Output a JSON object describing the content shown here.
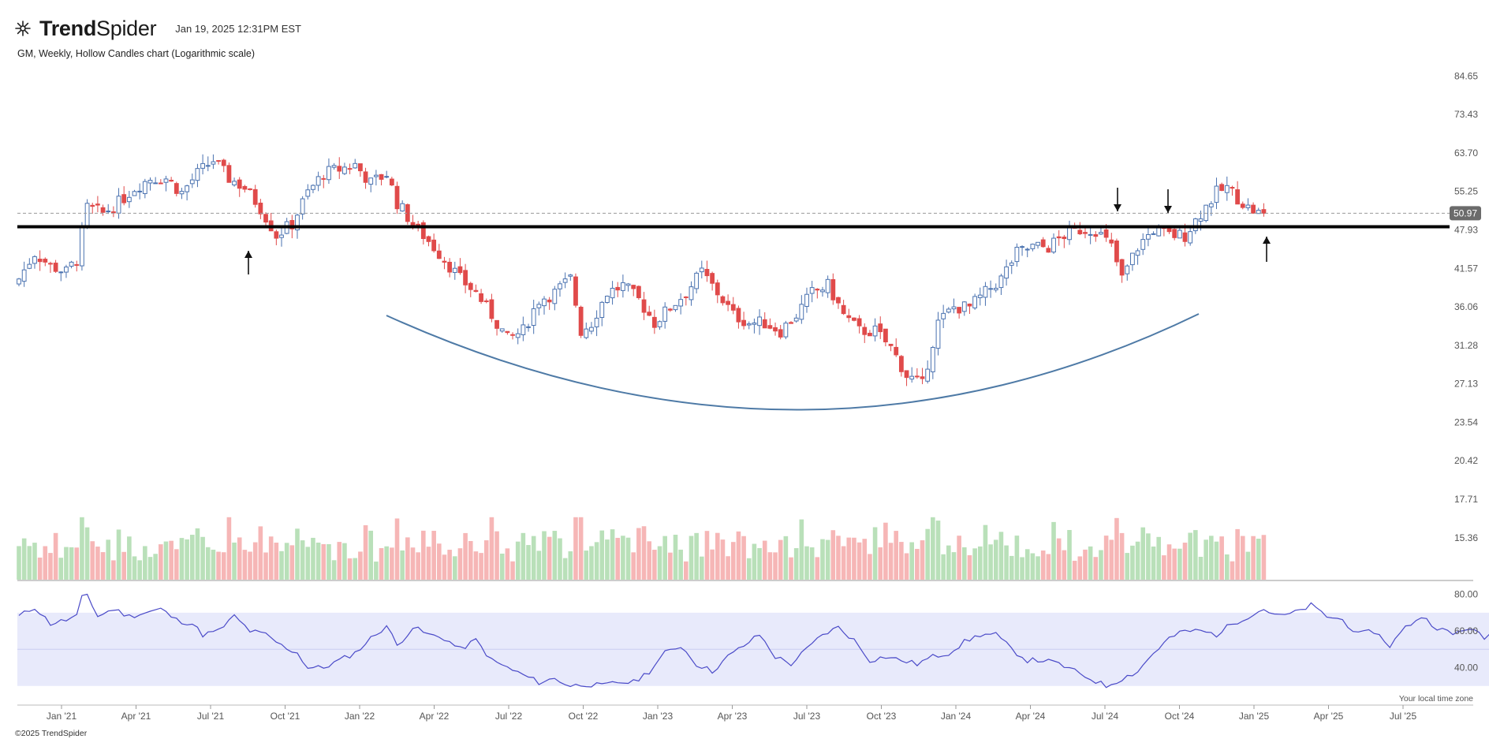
{
  "header": {
    "brand_bold": "Trend",
    "brand_light": "Spider",
    "timestamp": "Jan 19, 2025 12:31PM EST",
    "subtitle": "GM, Weekly, Hollow Candles chart (Logarithmic scale)",
    "logo_icon": "trendspider-logo-icon"
  },
  "footer": {
    "copyright": "©2025 TrendSpider",
    "timezone_note": "Your local time zone"
  },
  "chart_data": {
    "type": "candlestick",
    "symbol": "GM",
    "interval": "Weekly",
    "scale": "log",
    "ylim": [
      19.5,
      87
    ],
    "price_ticks": [
      "84.65",
      "73.43",
      "63.70",
      "55.25",
      "47.93",
      "41.57",
      "36.06",
      "31.28",
      "27.13",
      "23.54",
      "20.42",
      "17.71",
      "15.36"
    ],
    "x_ticks": [
      "Jan '21",
      "Apr '21",
      "Jul '21",
      "Oct '21",
      "Jan '22",
      "Apr '22",
      "Jul '22",
      "Oct '22",
      "Jan '23",
      "Apr '23",
      "Jul '23",
      "Oct '23",
      "Jan '24",
      "Apr '24",
      "Jul '24",
      "Oct '24",
      "Jan '25",
      "Apr '25",
      "Jul '25"
    ],
    "last_price": 50.97,
    "support_line": 48.5,
    "colors": {
      "up": "#4a72b0",
      "down": "#e04a4a",
      "vol_up": "#b9e0b9",
      "vol_down": "#f6b6b6",
      "rsi_line": "#4a4ac8",
      "rsi_band": "#e8eafb",
      "arc": "#4e7aa6"
    },
    "close_anchors": [
      {
        "w": 0,
        "c": 40
      },
      {
        "w": 3,
        "c": 44
      },
      {
        "w": 6,
        "c": 42
      },
      {
        "w": 9,
        "c": 41
      },
      {
        "w": 11,
        "c": 43
      },
      {
        "w": 13,
        "c": 52
      },
      {
        "w": 16,
        "c": 51
      },
      {
        "w": 19,
        "c": 53
      },
      {
        "w": 22,
        "c": 56
      },
      {
        "w": 25,
        "c": 58
      },
      {
        "w": 28,
        "c": 58
      },
      {
        "w": 31,
        "c": 55
      },
      {
        "w": 34,
        "c": 59
      },
      {
        "w": 37,
        "c": 62
      },
      {
        "w": 40,
        "c": 58
      },
      {
        "w": 43,
        "c": 56
      },
      {
        "w": 46,
        "c": 52
      },
      {
        "w": 49,
        "c": 47
      },
      {
        "w": 52,
        "c": 49
      },
      {
        "w": 55,
        "c": 55
      },
      {
        "w": 58,
        "c": 59
      },
      {
        "w": 61,
        "c": 60
      },
      {
        "w": 64,
        "c": 61
      },
      {
        "w": 67,
        "c": 57
      },
      {
        "w": 70,
        "c": 59
      },
      {
        "w": 72,
        "c": 53
      },
      {
        "w": 75,
        "c": 49
      },
      {
        "w": 78,
        "c": 46
      },
      {
        "w": 81,
        "c": 43
      },
      {
        "w": 84,
        "c": 40
      },
      {
        "w": 87,
        "c": 38
      },
      {
        "w": 90,
        "c": 35
      },
      {
        "w": 93,
        "c": 32
      },
      {
        "w": 96,
        "c": 33
      },
      {
        "w": 99,
        "c": 37
      },
      {
        "w": 102,
        "c": 38
      },
      {
        "w": 105,
        "c": 40
      },
      {
        "w": 107,
        "c": 33
      },
      {
        "w": 109,
        "c": 34
      },
      {
        "w": 112,
        "c": 38
      },
      {
        "w": 115,
        "c": 39
      },
      {
        "w": 118,
        "c": 37
      },
      {
        "w": 121,
        "c": 34
      },
      {
        "w": 124,
        "c": 36
      },
      {
        "w": 127,
        "c": 38
      },
      {
        "w": 130,
        "c": 41
      },
      {
        "w": 133,
        "c": 38
      },
      {
        "w": 136,
        "c": 35
      },
      {
        "w": 139,
        "c": 34
      },
      {
        "w": 142,
        "c": 34
      },
      {
        "w": 145,
        "c": 33
      },
      {
        "w": 148,
        "c": 35
      },
      {
        "w": 151,
        "c": 38
      },
      {
        "w": 154,
        "c": 39
      },
      {
        "w": 157,
        "c": 35
      },
      {
        "w": 160,
        "c": 33
      },
      {
        "w": 163,
        "c": 33
      },
      {
        "w": 166,
        "c": 31
      },
      {
        "w": 169,
        "c": 28
      },
      {
        "w": 172,
        "c": 27
      },
      {
        "w": 175,
        "c": 34
      },
      {
        "w": 178,
        "c": 36
      },
      {
        "w": 181,
        "c": 36
      },
      {
        "w": 184,
        "c": 38
      },
      {
        "w": 187,
        "c": 40
      },
      {
        "w": 190,
        "c": 44
      },
      {
        "w": 193,
        "c": 45
      },
      {
        "w": 196,
        "c": 45
      },
      {
        "w": 199,
        "c": 47
      },
      {
        "w": 202,
        "c": 48
      },
      {
        "w": 205,
        "c": 48
      },
      {
        "w": 208,
        "c": 45
      },
      {
        "w": 210,
        "c": 40
      },
      {
        "w": 213,
        "c": 45
      },
      {
        "w": 216,
        "c": 48
      },
      {
        "w": 219,
        "c": 47
      },
      {
        "w": 222,
        "c": 47
      },
      {
        "w": 225,
        "c": 51
      },
      {
        "w": 228,
        "c": 55
      },
      {
        "w": 230,
        "c": 56
      },
      {
        "w": 232,
        "c": 54
      },
      {
        "w": 234,
        "c": 52
      },
      {
        "w": 236,
        "c": 51
      },
      {
        "w": 237,
        "c": 50.97
      }
    ],
    "rsi": {
      "ylim": [
        20,
        85
      ],
      "ticks": [
        "80.00",
        "60.00",
        "40.00"
      ],
      "band": [
        30,
        70
      ],
      "anchors": [
        {
          "w": 0,
          "v": 68
        },
        {
          "w": 3,
          "v": 73
        },
        {
          "w": 6,
          "v": 64
        },
        {
          "w": 9,
          "v": 66
        },
        {
          "w": 11,
          "v": 68
        },
        {
          "w": 12,
          "v": 78
        },
        {
          "w": 13,
          "v": 80
        },
        {
          "w": 15,
          "v": 68
        },
        {
          "w": 18,
          "v": 72
        },
        {
          "w": 21,
          "v": 68
        },
        {
          "w": 24,
          "v": 70
        },
        {
          "w": 27,
          "v": 72
        },
        {
          "w": 30,
          "v": 66
        },
        {
          "w": 33,
          "v": 64
        },
        {
          "w": 35,
          "v": 58
        },
        {
          "w": 38,
          "v": 60
        },
        {
          "w": 41,
          "v": 68
        },
        {
          "w": 44,
          "v": 60
        },
        {
          "w": 47,
          "v": 58
        },
        {
          "w": 50,
          "v": 52
        },
        {
          "w": 53,
          "v": 48
        },
        {
          "w": 55,
          "v": 40
        },
        {
          "w": 58,
          "v": 40
        },
        {
          "w": 61,
          "v": 44
        },
        {
          "w": 64,
          "v": 48
        },
        {
          "w": 67,
          "v": 56
        },
        {
          "w": 70,
          "v": 63
        },
        {
          "w": 72,
          "v": 52
        },
        {
          "w": 75,
          "v": 62
        },
        {
          "w": 78,
          "v": 58
        },
        {
          "w": 81,
          "v": 56
        },
        {
          "w": 84,
          "v": 50
        },
        {
          "w": 87,
          "v": 55
        },
        {
          "w": 90,
          "v": 44
        },
        {
          "w": 93,
          "v": 40
        },
        {
          "w": 96,
          "v": 36
        },
        {
          "w": 99,
          "v": 32
        },
        {
          "w": 102,
          "v": 34
        },
        {
          "w": 105,
          "v": 30
        },
        {
          "w": 108,
          "v": 31
        },
        {
          "w": 111,
          "v": 30
        },
        {
          "w": 114,
          "v": 32
        },
        {
          "w": 117,
          "v": 32
        },
        {
          "w": 120,
          "v": 38
        },
        {
          "w": 123,
          "v": 48
        },
        {
          "w": 126,
          "v": 52
        },
        {
          "w": 129,
          "v": 42
        },
        {
          "w": 132,
          "v": 38
        },
        {
          "w": 135,
          "v": 46
        },
        {
          "w": 138,
          "v": 52
        },
        {
          "w": 141,
          "v": 58
        },
        {
          "w": 144,
          "v": 46
        },
        {
          "w": 147,
          "v": 42
        },
        {
          "w": 150,
          "v": 50
        },
        {
          "w": 153,
          "v": 58
        },
        {
          "w": 156,
          "v": 62
        },
        {
          "w": 159,
          "v": 55
        },
        {
          "w": 162,
          "v": 44
        },
        {
          "w": 165,
          "v": 46
        },
        {
          "w": 168,
          "v": 44
        },
        {
          "w": 171,
          "v": 42
        },
        {
          "w": 174,
          "v": 46
        },
        {
          "w": 177,
          "v": 48
        },
        {
          "w": 180,
          "v": 54
        },
        {
          "w": 183,
          "v": 58
        },
        {
          "w": 186,
          "v": 58
        },
        {
          "w": 189,
          "v": 50
        },
        {
          "w": 192,
          "v": 44
        },
        {
          "w": 195,
          "v": 44
        },
        {
          "w": 198,
          "v": 42
        },
        {
          "w": 201,
          "v": 38
        },
        {
          "w": 204,
          "v": 34
        },
        {
          "w": 207,
          "v": 30
        },
        {
          "w": 210,
          "v": 34
        },
        {
          "w": 213,
          "v": 38
        },
        {
          "w": 216,
          "v": 48
        },
        {
          "w": 219,
          "v": 56
        },
        {
          "w": 222,
          "v": 60
        },
        {
          "w": 225,
          "v": 60
        },
        {
          "w": 228,
          "v": 58
        },
        {
          "w": 231,
          "v": 64
        },
        {
          "w": 234,
          "v": 68
        },
        {
          "w": 237,
          "v": 72
        },
        {
          "w": 240,
          "v": 68
        },
        {
          "w": 243,
          "v": 70
        },
        {
          "w": 246,
          "v": 74
        },
        {
          "w": 249,
          "v": 68
        },
        {
          "w": 252,
          "v": 66
        },
        {
          "w": 255,
          "v": 58
        },
        {
          "w": 258,
          "v": 60
        },
        {
          "w": 261,
          "v": 52
        },
        {
          "w": 264,
          "v": 62
        },
        {
          "w": 267,
          "v": 68
        },
        {
          "w": 270,
          "v": 62
        },
        {
          "w": 273,
          "v": 58
        },
        {
          "w": 276,
          "v": 62
        },
        {
          "w": 279,
          "v": 56
        },
        {
          "w": 282,
          "v": 62
        },
        {
          "w": 285,
          "v": 68
        },
        {
          "w": 288,
          "v": 72
        },
        {
          "w": 291,
          "v": 62
        },
        {
          "w": 294,
          "v": 58
        },
        {
          "w": 297,
          "v": 52
        }
      ]
    }
  }
}
